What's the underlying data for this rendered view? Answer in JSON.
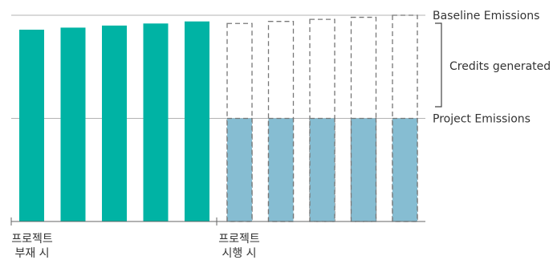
{
  "chart_data": {
    "type": "bar",
    "groups": [
      {
        "label_lines": [
          "프로젝트",
          "부재 시"
        ],
        "values": [
          0.93,
          0.94,
          0.95,
          0.96,
          0.97
        ]
      },
      {
        "label_lines": [
          "프로젝트",
          "시행 시"
        ],
        "project_values": [
          0.5,
          0.5,
          0.5,
          0.5,
          0.5
        ],
        "baseline_values": [
          0.96,
          0.97,
          0.98,
          0.99,
          1.0
        ]
      }
    ],
    "reference_lines": {
      "baseline": 1.0,
      "project": 0.5
    },
    "annotations": {
      "baseline_label": "Baseline Emissions",
      "credits_label": "Credits generated",
      "project_label": "Project Emissions"
    },
    "colors": {
      "without_project": "#00b3a4",
      "with_project": "#86bdd2",
      "baseline_outline": "#777777",
      "reference_line": "#b3b3b3",
      "axis": "#666666",
      "text": "#333333"
    },
    "ylim": [
      0,
      1.0
    ]
  }
}
